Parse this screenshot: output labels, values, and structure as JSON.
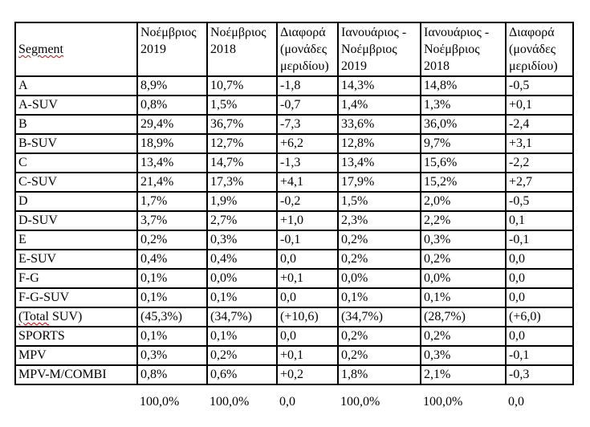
{
  "page": {
    "background_color": "#ffffff",
    "border_color": "#000000",
    "spellcheck_color": "#cc0000"
  },
  "table": {
    "headers": [
      "Segment",
      "Νοέμβριος 2019",
      "Νοέμβριος 2018",
      "Διαφορά (μονάδες μεριδίου)",
      "Ιανουάριος - Νοέμβριος 2019",
      "Ιανουάριος - Νοέμβριος 2018",
      "Διαφορά (μονάδες μεριδίου)"
    ],
    "rows": [
      [
        "A",
        "8,9%",
        "10,7%",
        "-1,8",
        "14,3%",
        "14,8%",
        "-0,5"
      ],
      [
        "A-SUV",
        "0,8%",
        "1,5%",
        "-0,7",
        "1,4%",
        "1,3%",
        "+0,1"
      ],
      [
        "B",
        "29,4%",
        "36,7%",
        "-7,3",
        "33,6%",
        "36,0%",
        "-2,4"
      ],
      [
        "B-SUV",
        "18,9%",
        "12,7%",
        "+6,2",
        "12,8%",
        "9,7%",
        "+3,1"
      ],
      [
        "C",
        "13,4%",
        "14,7%",
        "-1,3",
        "13,4%",
        "15,6%",
        "-2,2"
      ],
      [
        "C-SUV",
        "21,4%",
        "17,3%",
        "+4,1",
        "17,9%",
        "15,2%",
        "+2,7"
      ],
      [
        "D",
        "1,7%",
        "1,9%",
        "-0,2",
        "1,5%",
        "2,0%",
        "-0,5"
      ],
      [
        "D-SUV",
        "3,7%",
        "2,7%",
        "+1,0",
        "2,3%",
        "2,2%",
        "0,1"
      ],
      [
        "E",
        "0,2%",
        "0,3%",
        "-0,1",
        "0,2%",
        "0,3%",
        "-0,1"
      ],
      [
        "E-SUV",
        "0,4%",
        "0,4%",
        "0,0",
        "0,2%",
        "0,2%",
        "0,0"
      ],
      [
        "F-G",
        "0,1%",
        "0,0%",
        "+0,1",
        "0,0%",
        "0,0%",
        "0,0"
      ],
      [
        "F-G-SUV",
        "0,1%",
        "0,1%",
        "0,0",
        "0,1%",
        "0,1%",
        "0,0"
      ],
      [
        "(Total SUV)",
        "(45,3%)",
        "(34,7%)",
        "(+10,6)",
        "(34,7%)",
        "(28,7%)",
        "(+6,0)"
      ],
      [
        "SPORTS",
        "0,1%",
        "0,1%",
        "0,0",
        "0,2%",
        "0,2%",
        "0,0"
      ],
      [
        "MPV",
        "0,3%",
        "0,2%",
        "+0,1",
        "0,2%",
        "0,3%",
        "-0,1"
      ],
      [
        "MPV-M/COMBI",
        "0,8%",
        "0,6%",
        "+0,2",
        "1,8%",
        "2,1%",
        "-0,3"
      ]
    ],
    "totals": [
      "",
      "100,0%",
      "100,0%",
      "0,0",
      "100,0%",
      "100,0%",
      "0,0"
    ],
    "misspelled": [
      "Segment",
      "(Total"
    ]
  }
}
